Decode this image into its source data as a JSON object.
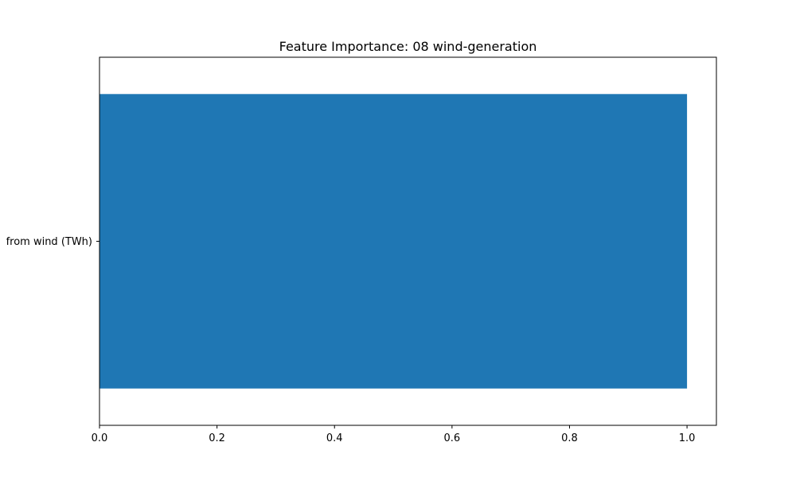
{
  "chart_data": {
    "type": "bar",
    "orientation": "horizontal",
    "title": "Feature Importance: 08 wind-generation",
    "xlabel": "",
    "ylabel": "",
    "categories": [
      "from wind (TWh)"
    ],
    "values": [
      1.0
    ],
    "xlim": [
      0.0,
      1.05
    ],
    "xticks": [
      0.0,
      0.2,
      0.4,
      0.6,
      0.8,
      1.0
    ],
    "xtick_labels": [
      "0.0",
      "0.2",
      "0.4",
      "0.6",
      "0.8",
      "1.0"
    ],
    "grid": false,
    "bar_color": "#1f77b4"
  }
}
